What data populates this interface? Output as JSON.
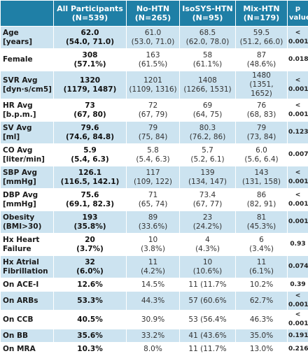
{
  "headers": [
    {
      "line1": "",
      "line2": ""
    },
    {
      "line1": "All Participants",
      "line2": "(N=539)"
    },
    {
      "line1": "No-HTN",
      "line2": "(N=265)"
    },
    {
      "line1": "IsoSYS-HTN",
      "line2": "(N=95)"
    },
    {
      "line1": "Mix-HTN",
      "line2": "(N=179)"
    },
    {
      "line1": "p",
      "line2": "value"
    }
  ],
  "rows": [
    {
      "label": [
        "Age",
        "[years]"
      ],
      "all": [
        "62.0",
        "(54.0, 71.0)"
      ],
      "nohtn": [
        "61.0",
        "(53.0, 71.0)"
      ],
      "iso": [
        "68.5",
        "(62.0, 78.0)"
      ],
      "mix": [
        "59.5",
        "(51.2, 66.0)"
      ],
      "p": "< 0.001"
    },
    {
      "label": [
        "Female",
        ""
      ],
      "all": [
        "308",
        "(57.1%)"
      ],
      "nohtn": [
        "163",
        "(61.5%)"
      ],
      "iso": [
        "58",
        "(61.1%)"
      ],
      "mix": [
        "87",
        "(48.6%)"
      ],
      "p": "0.018"
    },
    {
      "label": [
        "SVR Avg",
        "[dyn·s/cm5]"
      ],
      "all": [
        "1320",
        "(1179, 1487)"
      ],
      "nohtn": [
        "1201",
        "(1109, 1316)"
      ],
      "iso": [
        "1408",
        "(1266, 1531)"
      ],
      "mix": [
        "1480",
        "(1351, 1652)"
      ],
      "p": "< 0.001"
    },
    {
      "label": [
        "HR Avg",
        "[b.p.m.]"
      ],
      "all": [
        "73",
        "(67, 80)"
      ],
      "nohtn": [
        "72",
        "(67, 79)"
      ],
      "iso": [
        "69",
        "(64, 75)"
      ],
      "mix": [
        "76",
        "(68, 83)"
      ],
      "p": "< 0.001"
    },
    {
      "label": [
        "SV Avg",
        "[ml]"
      ],
      "all": [
        "79.6",
        "(74.6, 84.8)"
      ],
      "nohtn": [
        "79",
        "(75, 84)"
      ],
      "iso": [
        "80.3",
        "(76.2, 86)"
      ],
      "mix": [
        "79",
        "(73, 84)"
      ],
      "p": "0.123"
    },
    {
      "label": [
        "CO Avg",
        "[liter/min]"
      ],
      "all": [
        "5.9",
        "(5.4, 6.3)"
      ],
      "nohtn": [
        "5.8",
        "(5.4, 6.3)"
      ],
      "iso": [
        "5.7",
        "(5.2, 6.1)"
      ],
      "mix": [
        "6.0",
        "(5.6, 6.4)"
      ],
      "p": "0.007"
    },
    {
      "label": [
        "SBP Avg",
        "[mmHg]"
      ],
      "all": [
        "126.1",
        "(116.5, 142.1)"
      ],
      "nohtn": [
        "117",
        "(109, 122)"
      ],
      "iso": [
        "139",
        "(134, 147)"
      ],
      "mix": [
        "143",
        "(131, 158)"
      ],
      "p": "< 0.001"
    },
    {
      "label": [
        "DBP Avg",
        "[mmHg]"
      ],
      "all": [
        "75.6",
        "(69.1, 82.3)"
      ],
      "nohtn": [
        "71",
        "(65, 74)"
      ],
      "iso": [
        "73.4",
        "(67, 77)"
      ],
      "mix": [
        "86",
        "(82, 91)"
      ],
      "p": "< 0.001"
    },
    {
      "label": [
        "Obesity",
        "(BMI>30)"
      ],
      "all": [
        "193",
        "(35.8%)"
      ],
      "nohtn": [
        "89",
        "(33.6%)"
      ],
      "iso": [
        "23",
        "(24.2%)"
      ],
      "mix": [
        "81",
        "(45.3%)"
      ],
      "p": "0.001"
    },
    {
      "label": [
        "Hx Heart",
        "Failure"
      ],
      "all": [
        "20",
        "(3.7%)"
      ],
      "nohtn": [
        "10",
        "(3.8%)"
      ],
      "iso": [
        "4",
        "(4.3%)"
      ],
      "mix": [
        "6",
        "(3.4%)"
      ],
      "p": "0.93"
    },
    {
      "label": [
        "Hx Atrial",
        "Fibrillation"
      ],
      "all": [
        "32",
        "(6.0%)"
      ],
      "nohtn": [
        "11",
        "(4.2%)"
      ],
      "iso": [
        "10",
        "(10.6%)"
      ],
      "mix": [
        "11",
        "(6.1%)"
      ],
      "p": "0.074"
    },
    {
      "label": [
        "On ACE-I",
        ""
      ],
      "all": [
        "12.6%",
        ""
      ],
      "nohtn": [
        "14.5%",
        ""
      ],
      "iso": [
        "11 (11.7%",
        ""
      ],
      "mix": [
        "10.2%",
        ""
      ],
      "p": "0.39"
    },
    {
      "label": [
        "On ARBs",
        ""
      ],
      "all": [
        "53.3%",
        ""
      ],
      "nohtn": [
        "44.3%",
        ""
      ],
      "iso": [
        "57 (60.6%",
        ""
      ],
      "mix": [
        "62.7%",
        ""
      ],
      "p": "< 0.001"
    },
    {
      "label": [
        "On CCB",
        ""
      ],
      "all": [
        "40.5%",
        ""
      ],
      "nohtn": [
        "30.9%",
        ""
      ],
      "iso": [
        "53 (56.4%",
        ""
      ],
      "mix": [
        "46.3%",
        ""
      ],
      "p": "< 0.001"
    },
    {
      "label": [
        "On BB",
        ""
      ],
      "all": [
        "35.6%",
        ""
      ],
      "nohtn": [
        "33.2%",
        ""
      ],
      "iso": [
        "41 (43.6%",
        ""
      ],
      "mix": [
        "35.0%",
        ""
      ],
      "p": "0.191"
    },
    {
      "label": [
        "On MRA",
        ""
      ],
      "all": [
        "10.3%",
        ""
      ],
      "nohtn": [
        "8.0%",
        ""
      ],
      "iso": [
        "11 (11.7%",
        ""
      ],
      "mix": [
        "13.0%",
        ""
      ],
      "p": "0.216"
    }
  ]
}
